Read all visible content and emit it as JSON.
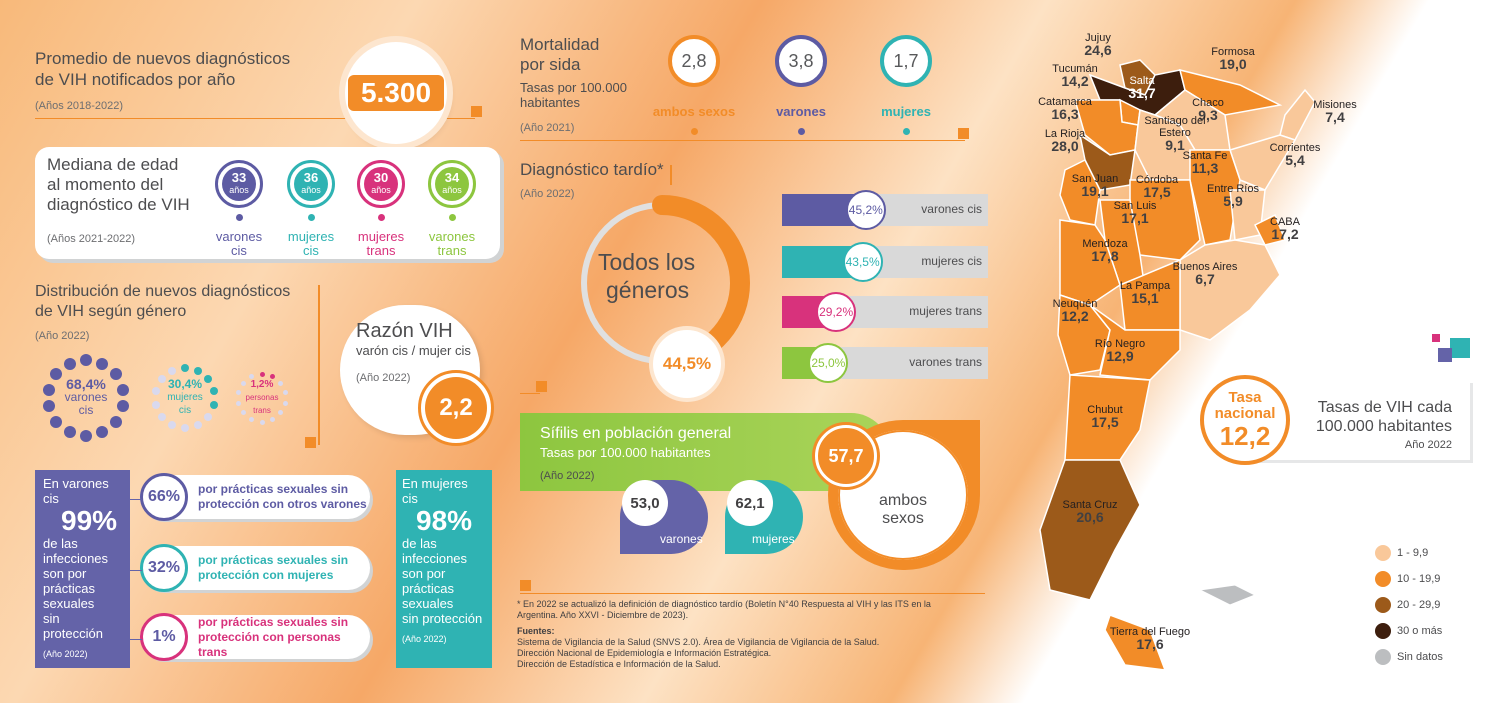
{
  "s1": {
    "title1": "Promedio de nuevos diagnósticos",
    "title2": "de VIH notificados por año",
    "years": "(Años 2018-2022)",
    "value": "5.300"
  },
  "age": {
    "title1": "Mediana de edad",
    "title2": "al momento del",
    "title3": "diagnóstico de VIH",
    "years": "(Años 2021-2022)",
    "unit": "años",
    "items": [
      {
        "value": "33",
        "l1": "varones",
        "l2": "cis",
        "color": "#5d5ba3"
      },
      {
        "value": "36",
        "l1": "mujeres",
        "l2": "cis",
        "color": "#2fb3b3"
      },
      {
        "value": "30",
        "l1": "mujeres",
        "l2": "trans",
        "color": "#d8327c"
      },
      {
        "value": "34",
        "l1": "varones",
        "l2": "trans",
        "color": "#8dc63f"
      }
    ]
  },
  "dist": {
    "title1": "Distribución de nuevos diagnósticos",
    "title2": "de VIH según género",
    "year": "(Año 2022)",
    "items": [
      {
        "pct": "68,4%",
        "l1": "varones",
        "l2": "cis",
        "color": "#5d5ba3"
      },
      {
        "pct": "30,4%",
        "l1": "mujeres",
        "l2": "cis",
        "color": "#2fb3b3"
      },
      {
        "pct": "1,2%",
        "l1": "personas",
        "l2": "trans",
        "color": "#d8327c"
      }
    ]
  },
  "ratio": {
    "t1": "Razón VIH",
    "t2": "varón cis / mujer cis",
    "year": "(Año 2022)",
    "value": "2,2"
  },
  "men": {
    "l1": "En varones",
    "l2": "cis",
    "pct": "99%",
    "l3": "de las",
    "l4": "infecciones",
    "l5": "son por",
    "l6": "prácticas",
    "l7": "sexuales",
    "l8": "sin protección",
    "year": "(Año 2022)",
    "items": [
      {
        "pct": "66%",
        "t1": "por prácticas sexuales sin",
        "t2": "protección con otros varones",
        "color": "#5d5ba3"
      },
      {
        "pct": "32%",
        "t1": "por prácticas sexuales sin",
        "t2": "protección con mujeres",
        "color": "#2fb3b3"
      },
      {
        "pct": "1%",
        "t1": "por prácticas sexuales sin",
        "t2": "protección con personas trans",
        "color": "#d8327c"
      }
    ]
  },
  "women": {
    "l1": "En mujeres",
    "l2": "cis",
    "pct": "98%",
    "l3": "de las",
    "l4": "infecciones",
    "l5": "son por",
    "l6": "prácticas",
    "l7": "sexuales",
    "l8": "sin protección",
    "year": "(Año 2022)"
  },
  "mort": {
    "t1": "Mortalidad",
    "t2": "por sida",
    "t3": "Tasas por 100.000",
    "t4": "habitantes",
    "year": "(Año 2021)",
    "items": [
      {
        "value": "2,8",
        "label": "ambos sexos",
        "color": "#f28c28"
      },
      {
        "value": "3,8",
        "label": "varones",
        "color": "#5d5ba3"
      },
      {
        "value": "1,7",
        "label": "mujeres",
        "color": "#2fb3b3"
      }
    ]
  },
  "late": {
    "title": "Diagnóstico tardío*",
    "year": "(Año 2022)",
    "center1": "Todos los",
    "center2": "géneros",
    "value": "44,5%",
    "fraction": 0.445,
    "bars": [
      {
        "pct": "45,2%",
        "label": "varones cis",
        "color": "#5d5ba3",
        "value": 0.452
      },
      {
        "pct": "43,5%",
        "label": "mujeres cis",
        "color": "#2fb3b3",
        "value": 0.435
      },
      {
        "pct": "29,2%",
        "label": "mujeres trans",
        "color": "#d8327c",
        "value": 0.292
      },
      {
        "pct": "25,0%",
        "label": "varones trans",
        "color": "#8dc63f",
        "value": 0.25
      }
    ]
  },
  "syph": {
    "t1": "Sífilis en población general",
    "t2": "Tasas por 100.000 habitantes",
    "year": "(Año 2022)",
    "men": "53,0",
    "men_l": "varones",
    "women": "62,1",
    "women_l": "mujeres",
    "both": "57,7",
    "both_l1": "ambos",
    "both_l2": "sexos"
  },
  "notes": {
    "n1": "* En 2022 se actualizó la definición de diagnóstico tardío (Boletín N°40 Respuesta al VIH y las ITS en la",
    "n2": "Argentina. Año XXVI - Diciembre de 2023).",
    "src": "Fuentes:",
    "s1": "Sistema de Vigilancia de la Salud (SNVS 2.0). Área de Vigilancia de Vigilancia de la Salud.",
    "s2": "Dirección Nacional de Epidemiología e Información Estratégica.",
    "s3": "Dirección de Estadística e Información de la Salud."
  },
  "map": {
    "provinces": [
      {
        "name": "Jujuy",
        "value": "24,6"
      },
      {
        "name": "Formosa",
        "value": "19,0"
      },
      {
        "name": "Tucumán",
        "value": "14,2"
      },
      {
        "name": "Salta",
        "value": "31,7"
      },
      {
        "name": "Misiones",
        "value": "7,4"
      },
      {
        "name": "Catamarca",
        "value": "16,3"
      },
      {
        "name": "Chaco",
        "value": "9,3"
      },
      {
        "name": "Santiago del Estero",
        "value": "9,1"
      },
      {
        "name": "La Rioja",
        "value": "28,0"
      },
      {
        "name": "Corrientes",
        "value": "5,4"
      },
      {
        "name": "Santa Fe",
        "value": "11,3"
      },
      {
        "name": "San Juan",
        "value": "19,1"
      },
      {
        "name": "Córdoba",
        "value": "17,5"
      },
      {
        "name": "Entre Ríos",
        "value": "5,9"
      },
      {
        "name": "San Luis",
        "value": "17,1"
      },
      {
        "name": "CABA",
        "value": "17,2"
      },
      {
        "name": "Mendoza",
        "value": "17,8"
      },
      {
        "name": "Buenos Aires",
        "value": "6,7"
      },
      {
        "name": "La Pampa",
        "value": "15,1"
      },
      {
        "name": "Neuquén",
        "value": "12,2"
      },
      {
        "name": "Río Negro",
        "value": "12,9"
      },
      {
        "name": "Chubut",
        "value": "17,5"
      },
      {
        "name": "Santa Cruz",
        "value": "20,6"
      },
      {
        "name": "Tierra del Fuego",
        "value": "17,6"
      }
    ],
    "national_t1": "Tasa",
    "national_t2": "nacional",
    "national_value": "12,2",
    "rates_t1": "Tasas de VIH cada",
    "rates_t2": "100.000 habitantes",
    "rates_year": "Año 2022",
    "legend": [
      {
        "label": "1 - 9,9",
        "color": "#f9c89a"
      },
      {
        "label": "10 - 19,9",
        "color": "#f28c28"
      },
      {
        "label": "20 - 29,9",
        "color": "#9c5a1a"
      },
      {
        "label": "30 o más",
        "color": "#3d1e0d"
      },
      {
        "label": "Sin datos",
        "color": "#bcbec0"
      }
    ]
  }
}
